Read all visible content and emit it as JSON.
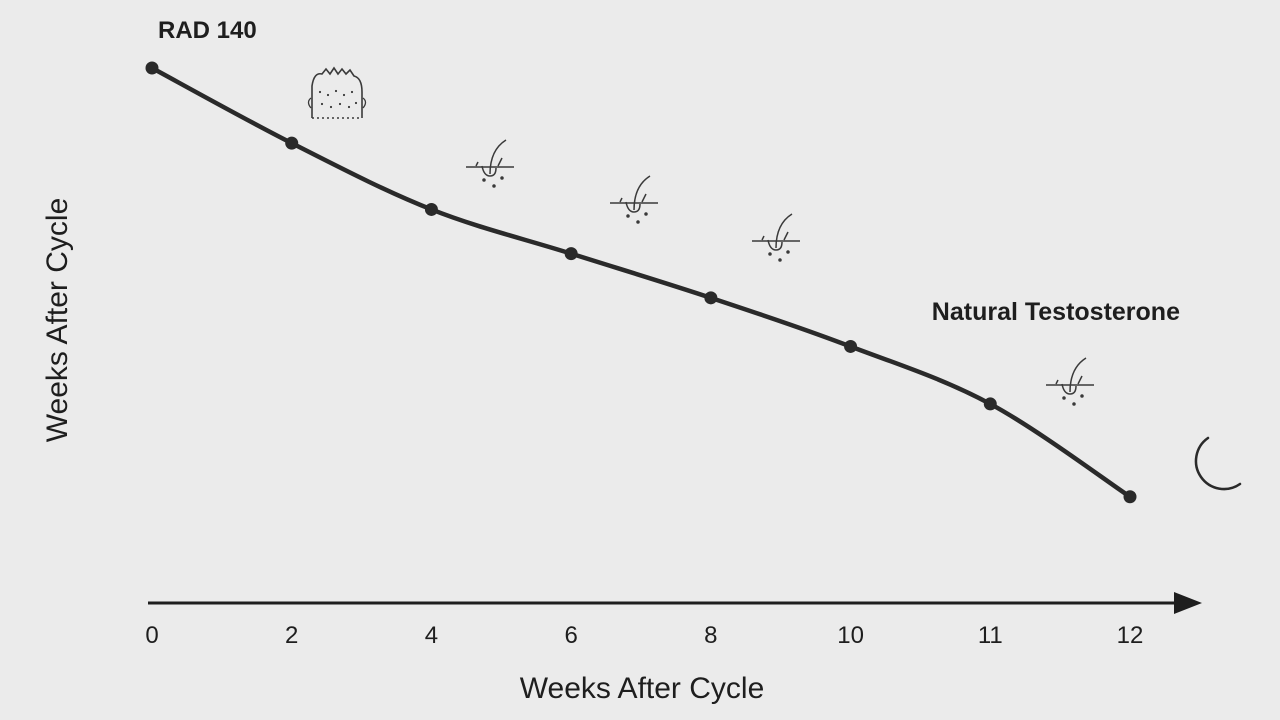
{
  "chart_data": {
    "type": "line",
    "title": "RAD 140",
    "annotation": "Natural Testosterone",
    "xlabel": "Weeks After Cycle",
    "ylabel": "Weeks After Cycle",
    "x_tick_labels": [
      "0",
      "2",
      "4",
      "6",
      "8",
      "10",
      "11",
      "12"
    ],
    "series": [
      {
        "x_labels": [
          "0",
          "2",
          "4",
          "6",
          "8",
          "10",
          "11",
          "12"
        ],
        "values": [
          100,
          83,
          68,
          58,
          48,
          37,
          24,
          3
        ]
      }
    ],
    "ylim": [
      0,
      100
    ],
    "y_axis_visible": false,
    "grid": false,
    "line_color": "#2a2a2a",
    "icons": [
      "hair-head-icon",
      "hair-follicle-icon",
      "hair-follicle-icon",
      "hair-follicle-icon",
      "hair-follicle-icon",
      "moon-icon"
    ]
  }
}
